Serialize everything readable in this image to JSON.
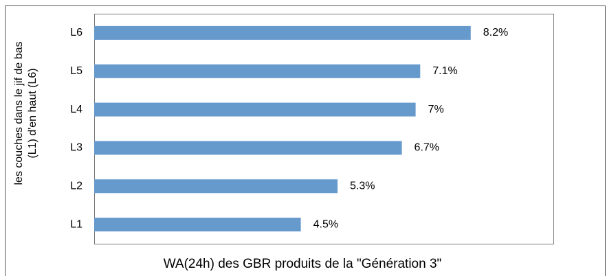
{
  "chart_data": {
    "type": "barh",
    "xlabel": "WA(24h) des GBR produits de la \"Génération 3\"",
    "ylabel": [
      "les couches dans le jif de bas",
      "(L1) d'en haut (L6)"
    ],
    "categories": [
      "L1",
      "L2",
      "L3",
      "L4",
      "L5",
      "L6"
    ],
    "values": [
      4.5,
      5.3,
      6.7,
      7,
      7.1,
      8.2
    ],
    "value_labels": [
      "4.5%",
      "5.3%",
      "6.7%",
      "7%",
      "7.1%",
      "8.2%"
    ],
    "color": "#6699cc",
    "xlim": [
      0,
      10
    ]
  }
}
